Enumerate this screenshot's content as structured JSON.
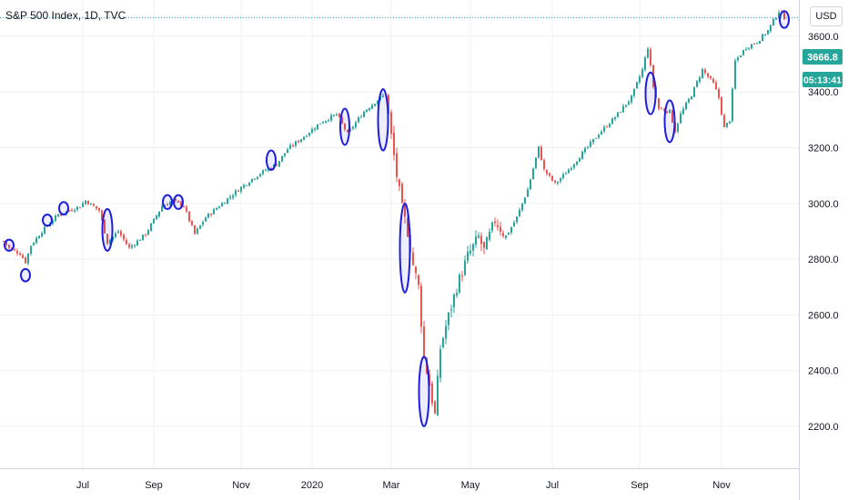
{
  "title": "S&P 500 Index, 1D, TVC",
  "currency": "USD",
  "price_label": "3666.8",
  "countdown_label": "05:13:41",
  "colors": {
    "up": "#26a69a",
    "down": "#ef5350",
    "marker": "#1e1edc",
    "label_bg": "#26a69a",
    "grid": "#eef0f3"
  },
  "chart_data": {
    "type": "candlestick",
    "title": "S&P 500 Index, 1D, TVC",
    "y_ticks": [
      "2200.0",
      "2400.0",
      "2600.0",
      "2800.0",
      "3000.0",
      "3200.0",
      "3400.0",
      "3600.0"
    ],
    "x_ticks": [
      "Jul",
      "Sep",
      "Nov",
      "2020",
      "Mar",
      "May",
      "Jul",
      "Sep",
      "Nov"
    ],
    "ylim": [
      2050,
      3730
    ],
    "last_price": 3666.8,
    "key_closes": [
      {
        "t": 0,
        "v": 2865
      },
      {
        "t": 2,
        "v": 2840
      },
      {
        "t": 6,
        "v": 2820
      },
      {
        "t": 8,
        "v": 2790
      },
      {
        "t": 10,
        "v": 2850
      },
      {
        "t": 14,
        "v": 2900
      },
      {
        "t": 20,
        "v": 2960
      },
      {
        "t": 28,
        "v": 2990
      },
      {
        "t": 30,
        "v": 3010
      },
      {
        "t": 35,
        "v": 2975
      },
      {
        "t": 38,
        "v": 2860
      },
      {
        "t": 42,
        "v": 2900
      },
      {
        "t": 46,
        "v": 2840
      },
      {
        "t": 52,
        "v": 2890
      },
      {
        "t": 58,
        "v": 2990
      },
      {
        "t": 62,
        "v": 3010
      },
      {
        "t": 66,
        "v": 2990
      },
      {
        "t": 70,
        "v": 2890
      },
      {
        "t": 74,
        "v": 2950
      },
      {
        "t": 80,
        "v": 3000
      },
      {
        "t": 86,
        "v": 3050
      },
      {
        "t": 92,
        "v": 3095
      },
      {
        "t": 96,
        "v": 3120
      },
      {
        "t": 100,
        "v": 3140
      },
      {
        "t": 104,
        "v": 3195
      },
      {
        "t": 110,
        "v": 3240
      },
      {
        "t": 116,
        "v": 3290
      },
      {
        "t": 122,
        "v": 3320
      },
      {
        "t": 126,
        "v": 3250
      },
      {
        "t": 132,
        "v": 3330
      },
      {
        "t": 138,
        "v": 3380
      },
      {
        "t": 140,
        "v": 3390
      },
      {
        "t": 142,
        "v": 3240
      },
      {
        "t": 144,
        "v": 3100
      },
      {
        "t": 146,
        "v": 2980
      },
      {
        "t": 148,
        "v": 2900
      },
      {
        "t": 150,
        "v": 2780
      },
      {
        "t": 152,
        "v": 2700
      },
      {
        "t": 154,
        "v": 2450
      },
      {
        "t": 156,
        "v": 2350
      },
      {
        "t": 158,
        "v": 2240
      },
      {
        "t": 160,
        "v": 2480
      },
      {
        "t": 162,
        "v": 2560
      },
      {
        "t": 166,
        "v": 2700
      },
      {
        "t": 170,
        "v": 2810
      },
      {
        "t": 174,
        "v": 2880
      },
      {
        "t": 176,
        "v": 2830
      },
      {
        "t": 180,
        "v": 2940
      },
      {
        "t": 184,
        "v": 2880
      },
      {
        "t": 188,
        "v": 2950
      },
      {
        "t": 192,
        "v": 3050
      },
      {
        "t": 196,
        "v": 3200
      },
      {
        "t": 198,
        "v": 3120
      },
      {
        "t": 202,
        "v": 3070
      },
      {
        "t": 206,
        "v": 3110
      },
      {
        "t": 212,
        "v": 3180
      },
      {
        "t": 218,
        "v": 3250
      },
      {
        "t": 224,
        "v": 3310
      },
      {
        "t": 230,
        "v": 3380
      },
      {
        "t": 234,
        "v": 3480
      },
      {
        "t": 236,
        "v": 3560
      },
      {
        "t": 238,
        "v": 3420
      },
      {
        "t": 240,
        "v": 3340
      },
      {
        "t": 244,
        "v": 3330
      },
      {
        "t": 246,
        "v": 3260
      },
      {
        "t": 248,
        "v": 3320
      },
      {
        "t": 252,
        "v": 3390
      },
      {
        "t": 256,
        "v": 3480
      },
      {
        "t": 260,
        "v": 3430
      },
      {
        "t": 262,
        "v": 3380
      },
      {
        "t": 264,
        "v": 3270
      },
      {
        "t": 266,
        "v": 3300
      },
      {
        "t": 268,
        "v": 3510
      },
      {
        "t": 272,
        "v": 3560
      },
      {
        "t": 276,
        "v": 3580
      },
      {
        "t": 280,
        "v": 3620
      },
      {
        "t": 284,
        "v": 3690
      },
      {
        "t": 286,
        "v": 3667
      }
    ],
    "markers": [
      {
        "t": 2,
        "lo": 2830,
        "hi": 2870
      },
      {
        "t": 8,
        "lo": 2720,
        "hi": 2765
      },
      {
        "t": 16,
        "lo": 2920,
        "hi": 2960
      },
      {
        "t": 22,
        "lo": 2960,
        "hi": 3005
      },
      {
        "t": 38,
        "lo": 2830,
        "hi": 2980
      },
      {
        "t": 60,
        "lo": 2980,
        "hi": 3030
      },
      {
        "t": 64,
        "lo": 2980,
        "hi": 3030
      },
      {
        "t": 98,
        "lo": 3120,
        "hi": 3190
      },
      {
        "t": 125,
        "lo": 3210,
        "hi": 3340
      },
      {
        "t": 139,
        "lo": 3190,
        "hi": 3410
      },
      {
        "t": 147,
        "lo": 2680,
        "hi": 3000
      },
      {
        "t": 154,
        "lo": 2200,
        "hi": 2450
      },
      {
        "t": 237,
        "lo": 3320,
        "hi": 3470
      },
      {
        "t": 244,
        "lo": 3220,
        "hi": 3370
      },
      {
        "t": 286,
        "lo": 3630,
        "hi": 3690
      }
    ]
  }
}
